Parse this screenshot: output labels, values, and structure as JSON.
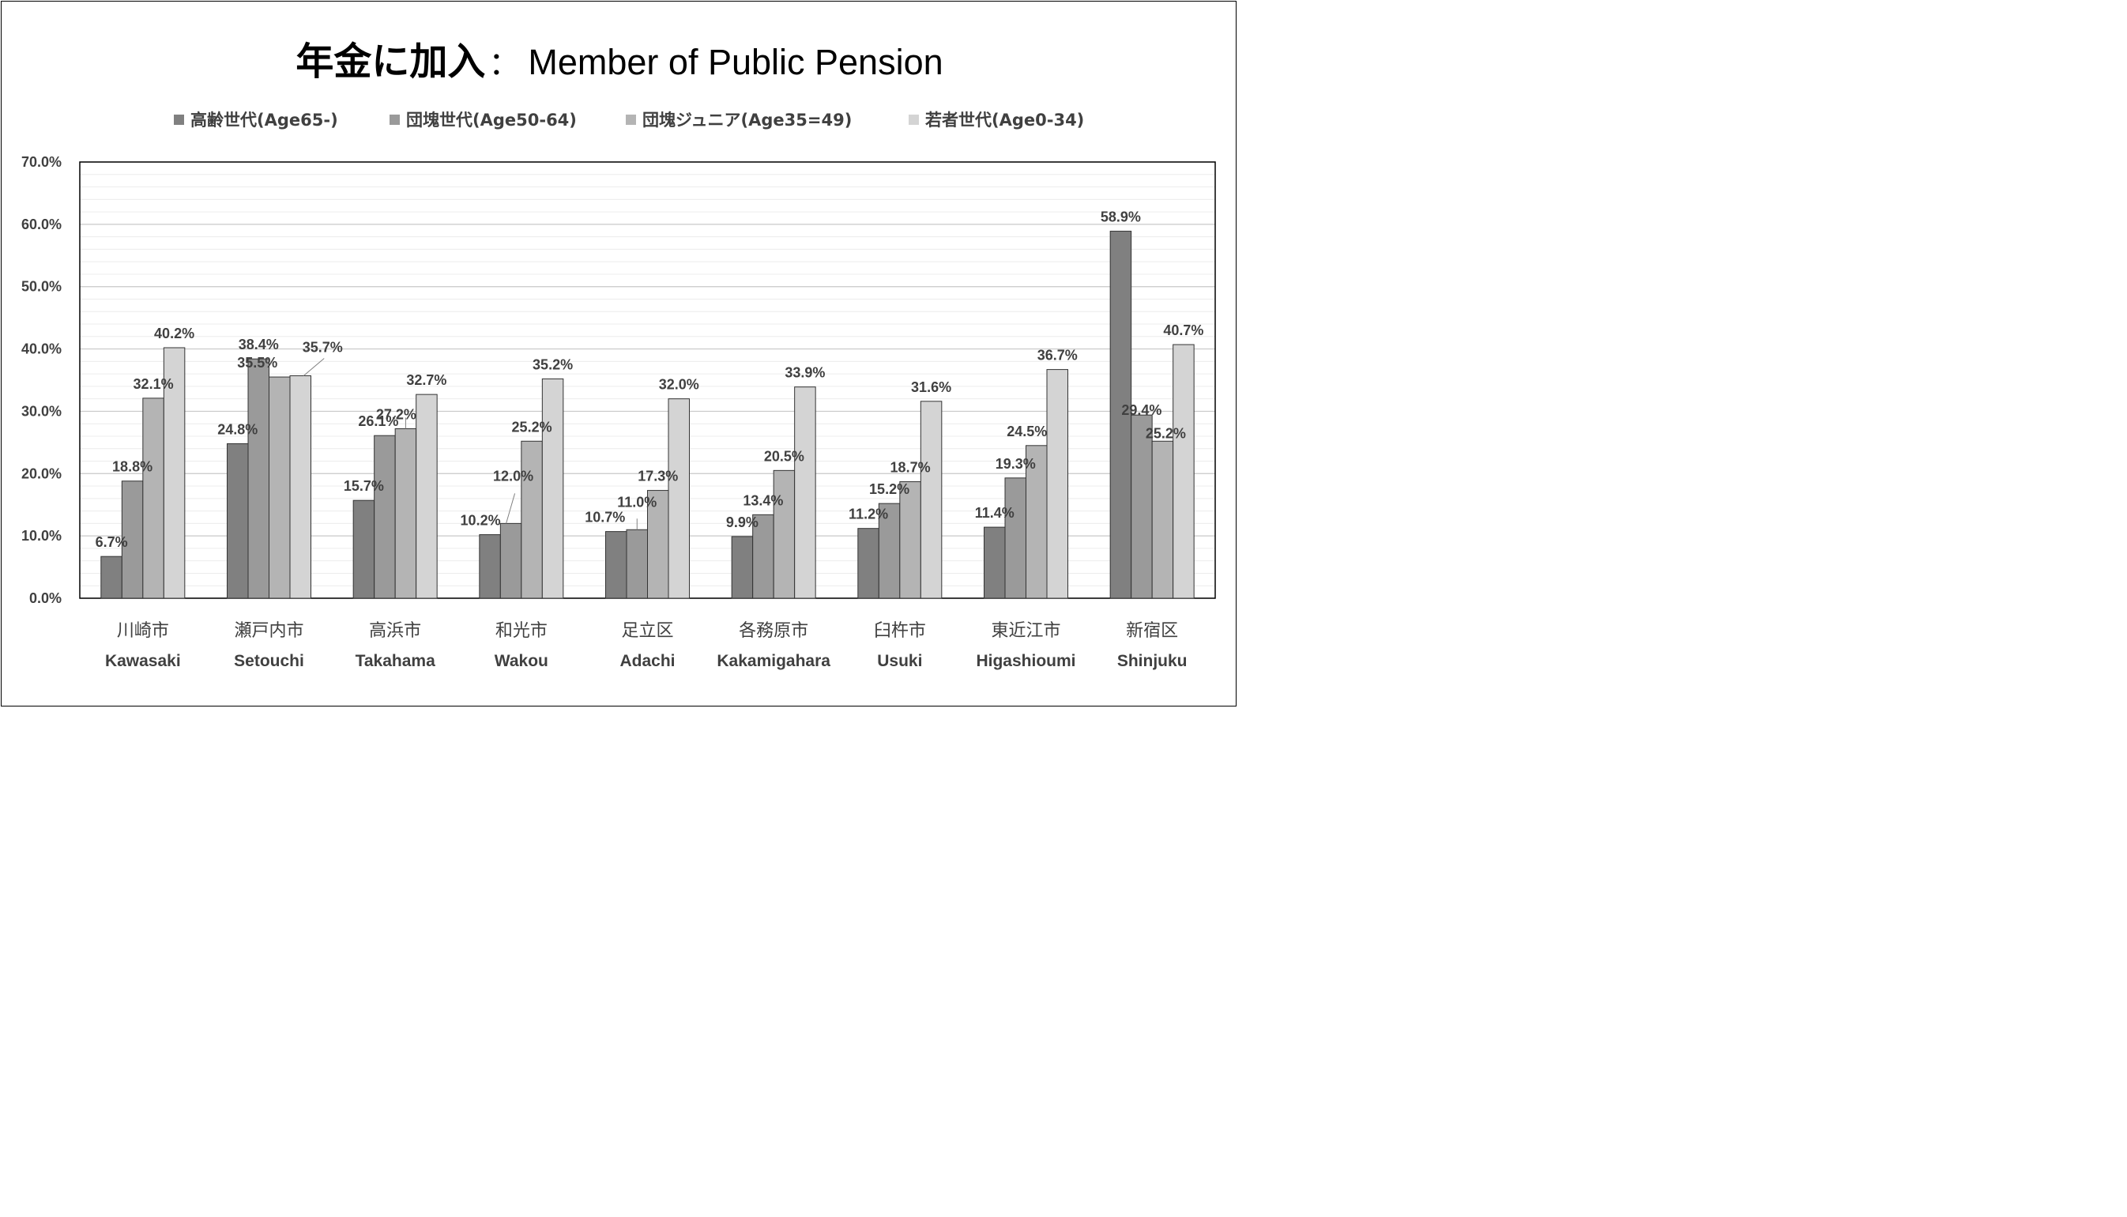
{
  "chart_data": {
    "type": "bar",
    "title_jp": "年金に加入",
    "title_sep": "：",
    "title_en": "Member of Public Pension",
    "ylim": [
      0,
      70
    ],
    "y_ticks": [
      "0.0%",
      "10.0%",
      "20.0%",
      "30.0%",
      "40.0%",
      "50.0%",
      "60.0%",
      "70.0%"
    ],
    "legend_position": "top",
    "grid": true,
    "categories": [
      {
        "jp": "川崎市",
        "en": "Kawasaki"
      },
      {
        "jp": "瀬戸内市",
        "en": "Setouchi"
      },
      {
        "jp": "高浜市",
        "en": "Takahama"
      },
      {
        "jp": "和光市",
        "en": "Wakou"
      },
      {
        "jp": "足立区",
        "en": "Adachi"
      },
      {
        "jp": "各務原市",
        "en": "Kakamigahara"
      },
      {
        "jp": "臼杵市",
        "en": "Usuki"
      },
      {
        "jp": "東近江市",
        "en": "Higashioumi"
      },
      {
        "jp": "新宿区",
        "en": "Shinjuku"
      }
    ],
    "series": [
      {
        "name": "高齢世代(Age65-)",
        "color": "#808080",
        "values": [
          6.7,
          24.8,
          15.7,
          10.2,
          10.7,
          9.9,
          11.2,
          11.4,
          58.9
        ],
        "labels": [
          "6.7%",
          "24.8%",
          "15.7%",
          "10.2%",
          "10.7%",
          "9.9%",
          "11.2%",
          "11.4%",
          "58.9%"
        ]
      },
      {
        "name": "団塊世代(Age50-64)",
        "color": "#9a9a9a",
        "values": [
          18.8,
          38.4,
          26.1,
          12.0,
          11.0,
          13.4,
          15.2,
          19.3,
          29.4
        ],
        "labels": [
          "18.8%",
          "38.4%",
          "26.1%",
          "12.0%",
          "11.0%",
          "13.4%",
          "15.2%",
          "19.3%",
          "29.4%"
        ]
      },
      {
        "name": "団塊ジュニア(Age35=49)",
        "color": "#b4b4b4",
        "values": [
          32.1,
          35.5,
          27.2,
          25.2,
          17.3,
          20.5,
          18.7,
          24.5,
          25.2
        ],
        "labels": [
          "32.1%",
          "35.5%",
          "27.2%",
          "25.2%",
          "17.3%",
          "20.5%",
          "18.7%",
          "24.5%",
          "25.2%"
        ]
      },
      {
        "name": "若者世代(Age0-34)",
        "color": "#d4d4d4",
        "values": [
          40.2,
          35.7,
          32.7,
          35.2,
          32.0,
          33.9,
          31.6,
          36.7,
          40.7
        ],
        "labels": [
          "40.2%",
          "35.7%",
          "32.7%",
          "35.2%",
          "32.0%",
          "33.9%",
          "31.6%",
          "36.7%",
          "40.7%"
        ]
      }
    ]
  }
}
